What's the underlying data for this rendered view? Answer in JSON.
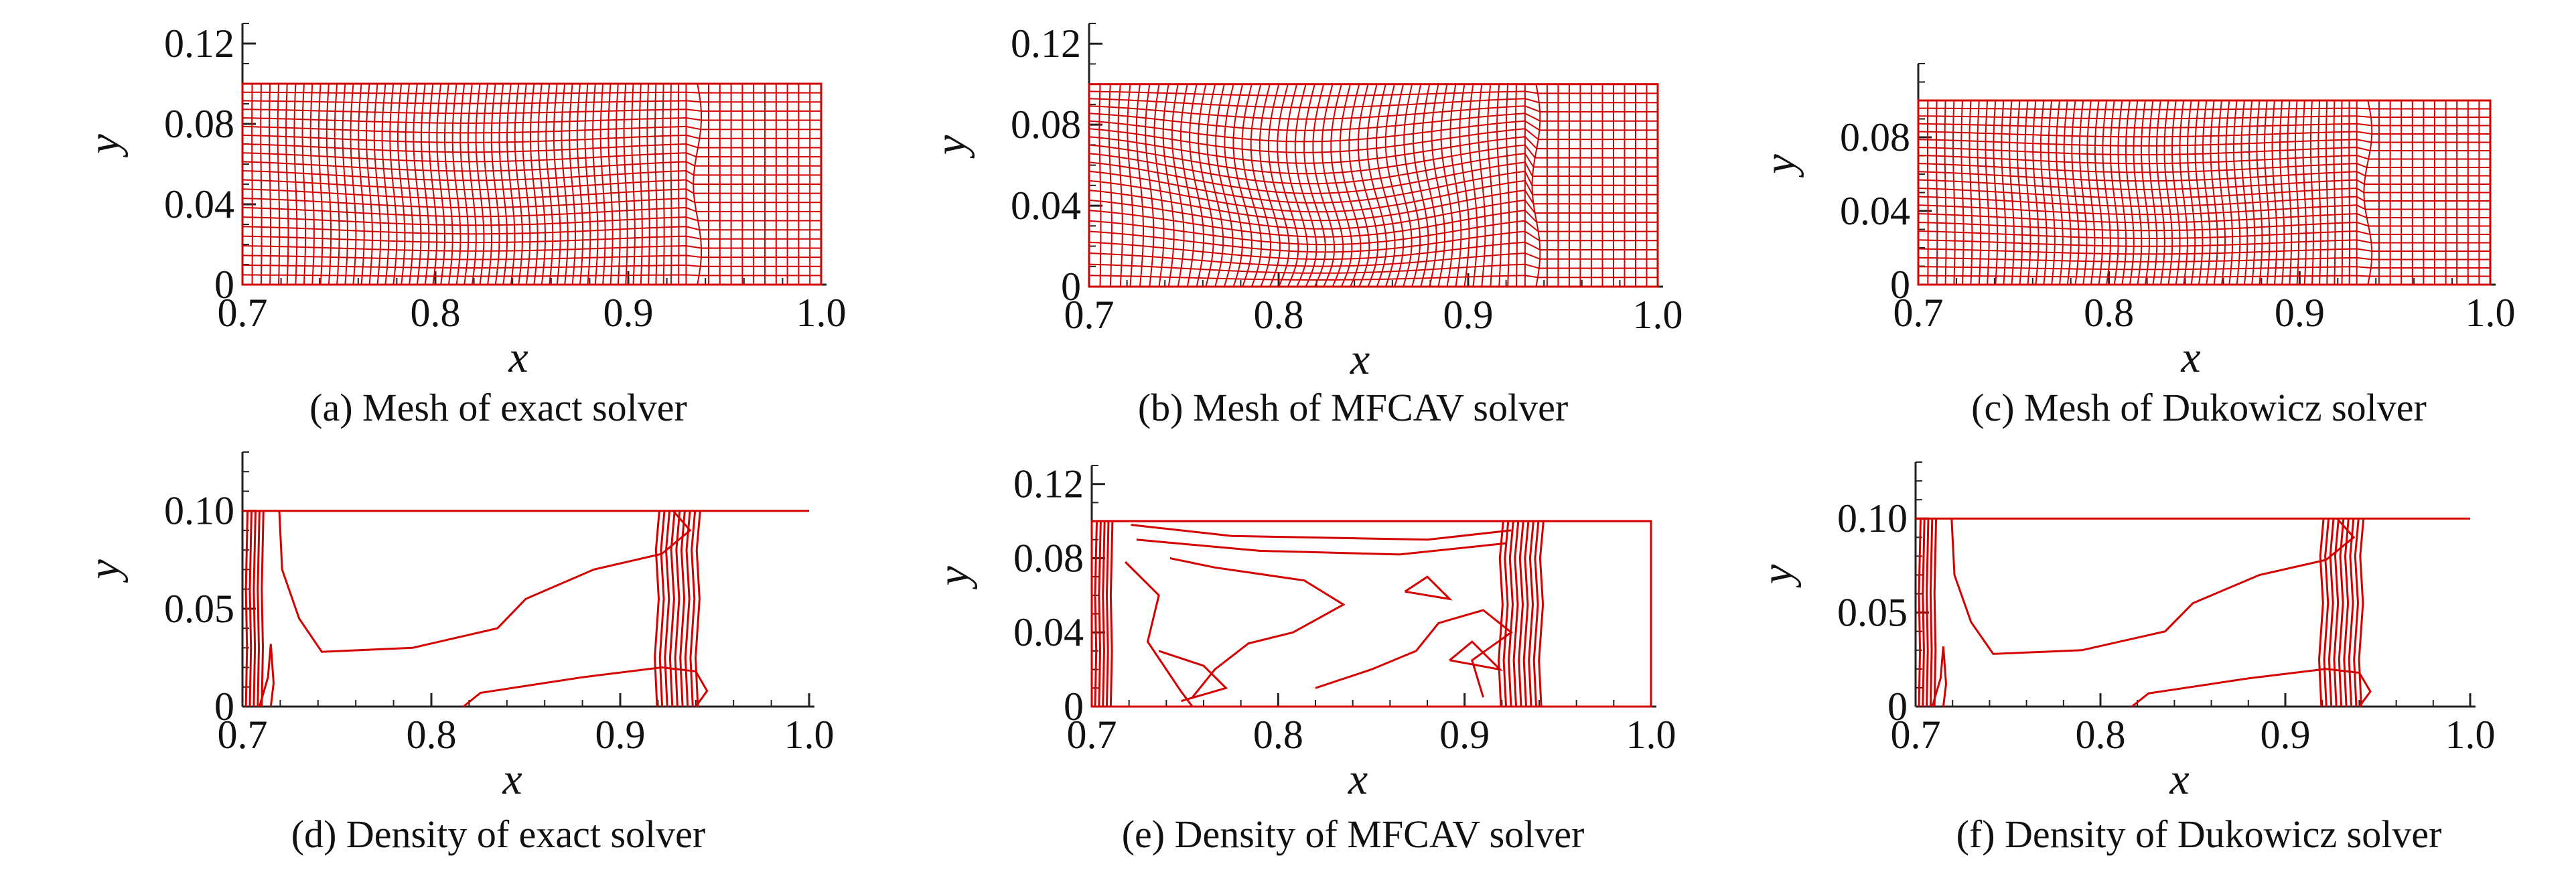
{
  "colors": {
    "mesh": "#d40000",
    "axis": "#222222",
    "background": "#ffffff"
  },
  "panels": [
    {
      "id": "a",
      "kind": "mesh",
      "caption": "(a) Mesh of exact solver",
      "xlabel": "x",
      "ylabel": "y",
      "xticks": [
        "0.7",
        "0.8",
        "0.9",
        "1.0"
      ],
      "yticks": [
        "0",
        "0.04",
        "0.08",
        "0.12"
      ],
      "xlim": [
        0.7,
        1.0
      ],
      "ylim": [
        0,
        0.13
      ]
    },
    {
      "id": "b",
      "kind": "mesh",
      "caption": "(b) Mesh of MFCAV solver",
      "xlabel": "x",
      "ylabel": "y",
      "xticks": [
        "0.7",
        "0.8",
        "0.9",
        "1.0"
      ],
      "yticks": [
        "0",
        "0.04",
        "0.08",
        "0.12"
      ],
      "xlim": [
        0.7,
        1.0
      ],
      "ylim": [
        0,
        0.13
      ]
    },
    {
      "id": "c",
      "kind": "mesh",
      "caption": "(c) Mesh of Dukowicz solver",
      "xlabel": "x",
      "ylabel": "y",
      "xticks": [
        "0.7",
        "0.8",
        "0.9",
        "1.0"
      ],
      "yticks": [
        "0",
        "0.04",
        "0.08"
      ],
      "xlim": [
        0.7,
        1.0
      ],
      "ylim": [
        0,
        0.12
      ]
    },
    {
      "id": "d",
      "kind": "contour",
      "caption": "(d) Density of exact solver",
      "xlabel": "x",
      "ylabel": "y",
      "xticks": [
        "0.7",
        "0.8",
        "0.9",
        "1.0"
      ],
      "yticks": [
        "0",
        "0.05",
        "0.10"
      ],
      "xlim": [
        0.7,
        1.0
      ],
      "ylim": [
        0,
        0.13
      ]
    },
    {
      "id": "e",
      "kind": "contour",
      "caption": "(e) Density of MFCAV solver",
      "xlabel": "x",
      "ylabel": "y",
      "xticks": [
        "0.7",
        "0.8",
        "0.9",
        "1.0"
      ],
      "yticks": [
        "0",
        "0.04",
        "0.08",
        "0.12"
      ],
      "xlim": [
        0.7,
        1.0
      ],
      "ylim": [
        0,
        0.13
      ]
    },
    {
      "id": "f",
      "kind": "contour",
      "caption": "(f) Density of Dukowicz solver",
      "xlabel": "x",
      "ylabel": "y",
      "xticks": [
        "0.7",
        "0.8",
        "0.9",
        "1.0"
      ],
      "yticks": [
        "0",
        "0.05",
        "0.10"
      ],
      "xlim": [
        0.7,
        1.0
      ],
      "ylim": [
        0,
        0.13
      ]
    }
  ],
  "chart_data": [
    {
      "type": "mesh",
      "domain": {
        "x": [
          0.7,
          1.0
        ],
        "y": [
          0,
          0.1
        ]
      },
      "shock_x": 0.93,
      "xlim": [
        0.7,
        1.0
      ],
      "ylim": [
        0,
        0.13
      ]
    },
    {
      "type": "mesh",
      "domain": {
        "x": [
          0.7,
          1.0
        ],
        "y": [
          0,
          0.1
        ]
      },
      "shock_x": 0.93,
      "xlim": [
        0.7,
        1.0
      ],
      "ylim": [
        0,
        0.13
      ]
    },
    {
      "type": "mesh",
      "domain": {
        "x": [
          0.7,
          1.0
        ],
        "y": [
          0,
          0.1
        ]
      },
      "shock_x": 0.93,
      "xlim": [
        0.7,
        1.0
      ],
      "ylim": [
        0,
        0.12
      ]
    },
    {
      "type": "contour",
      "domain": {
        "x": [
          0.7,
          1.0
        ],
        "y": [
          0,
          0.1
        ]
      },
      "shock_x": 0.93,
      "xlim": [
        0.7,
        1.0
      ],
      "ylim": [
        0,
        0.13
      ]
    },
    {
      "type": "contour",
      "domain": {
        "x": [
          0.7,
          1.0
        ],
        "y": [
          0,
          0.1
        ]
      },
      "shock_x": 0.93,
      "xlim": [
        0.7,
        1.0
      ],
      "ylim": [
        0,
        0.13
      ]
    },
    {
      "type": "contour",
      "domain": {
        "x": [
          0.7,
          1.0
        ],
        "y": [
          0,
          0.1
        ]
      },
      "shock_x": 0.93,
      "xlim": [
        0.7,
        1.0
      ],
      "ylim": [
        0,
        0.13
      ]
    }
  ]
}
